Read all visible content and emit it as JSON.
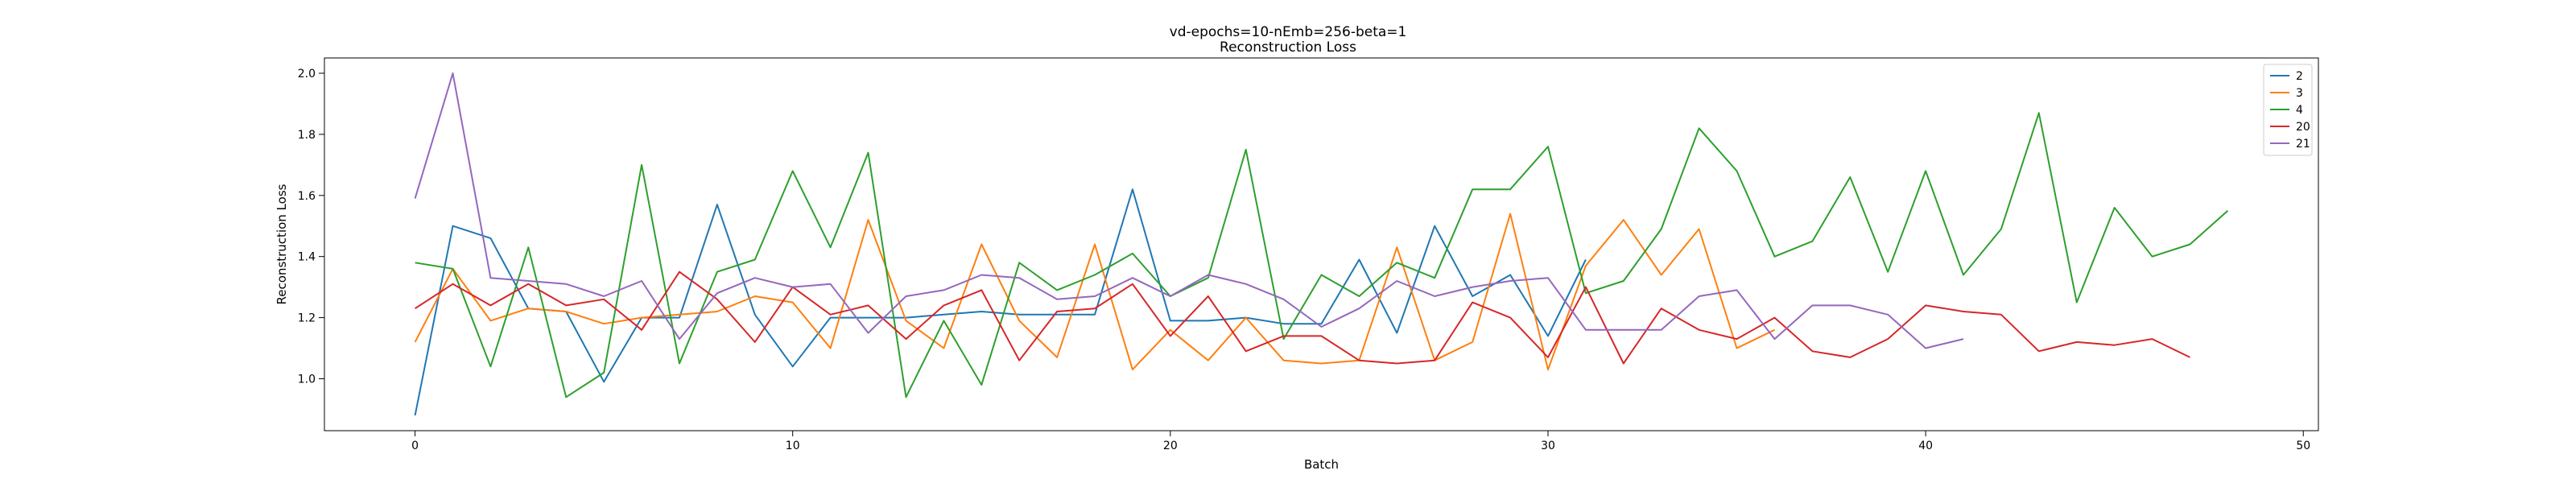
{
  "chart_data": {
    "type": "line",
    "title": "vd-epochs=10-nEmb=256-beta=1",
    "subtitle": "Reconstruction Loss",
    "xlabel": "Batch",
    "ylabel": "Reconstruction Loss",
    "xlim": [
      -2.4,
      50.4
    ],
    "ylim": [
      0.83,
      2.05
    ],
    "xticks": [
      0,
      10,
      20,
      30,
      40,
      50
    ],
    "yticks": [
      1.0,
      1.2,
      1.4,
      1.6,
      1.8,
      2.0
    ],
    "ytick_labels": [
      "1.0",
      "1.2",
      "1.4",
      "1.6",
      "1.8",
      "2.0"
    ],
    "grid": false,
    "legend_position": "top-right",
    "series": [
      {
        "name": "2",
        "color": "#1f77b4",
        "values": [
          0.88,
          1.5,
          1.46,
          1.23,
          1.22,
          0.99,
          1.2,
          1.2,
          1.57,
          1.21,
          1.04,
          1.2,
          1.2,
          1.2,
          1.21,
          1.22,
          1.21,
          1.21,
          1.21,
          1.62,
          1.19,
          1.19,
          1.2,
          1.18,
          1.18,
          1.39,
          1.15,
          1.5,
          1.27,
          1.34,
          1.14,
          1.39
        ]
      },
      {
        "name": "3",
        "color": "#ff7f0e",
        "values": [
          1.12,
          1.36,
          1.19,
          1.23,
          1.22,
          1.18,
          1.2,
          1.21,
          1.22,
          1.27,
          1.25,
          1.1,
          1.52,
          1.19,
          1.1,
          1.44,
          1.19,
          1.07,
          1.44,
          1.03,
          1.16,
          1.06,
          1.2,
          1.06,
          1.05,
          1.06,
          1.43,
          1.06,
          1.12,
          1.54,
          1.03,
          1.37,
          1.52,
          1.34,
          1.49,
          1.1,
          1.16
        ]
      },
      {
        "name": "4",
        "color": "#2ca02c",
        "values": [
          1.38,
          1.36,
          1.04,
          1.43,
          0.94,
          1.02,
          1.7,
          1.05,
          1.35,
          1.39,
          1.68,
          1.43,
          1.74,
          0.94,
          1.19,
          0.98,
          1.38,
          1.29,
          1.34,
          1.41,
          1.27,
          1.33,
          1.75,
          1.13,
          1.34,
          1.27,
          1.38,
          1.33,
          1.62,
          1.62,
          1.76,
          1.28,
          1.32,
          1.49,
          1.82,
          1.68,
          1.4,
          1.45,
          1.66,
          1.35,
          1.68,
          1.34,
          1.49,
          1.87,
          1.25,
          1.56,
          1.4,
          1.44,
          1.55
        ]
      },
      {
        "name": "20",
        "color": "#d62728",
        "values": [
          1.23,
          1.31,
          1.24,
          1.31,
          1.24,
          1.26,
          1.16,
          1.35,
          1.26,
          1.12,
          1.3,
          1.21,
          1.24,
          1.13,
          1.24,
          1.29,
          1.06,
          1.22,
          1.23,
          1.31,
          1.14,
          1.27,
          1.09,
          1.14,
          1.14,
          1.06,
          1.05,
          1.06,
          1.25,
          1.2,
          1.07,
          1.3,
          1.05,
          1.23,
          1.16,
          1.13,
          1.2,
          1.09,
          1.07,
          1.13,
          1.24,
          1.22,
          1.21,
          1.09,
          1.12,
          1.11,
          1.13,
          1.07
        ]
      },
      {
        "name": "21",
        "color": "#9467bd",
        "values": [
          1.59,
          2.0,
          1.33,
          1.32,
          1.31,
          1.27,
          1.32,
          1.13,
          1.28,
          1.33,
          1.3,
          1.31,
          1.15,
          1.27,
          1.29,
          1.34,
          1.33,
          1.26,
          1.27,
          1.33,
          1.27,
          1.34,
          1.31,
          1.26,
          1.17,
          1.23,
          1.32,
          1.27,
          1.3,
          1.32,
          1.33,
          1.16,
          1.16,
          1.16,
          1.27,
          1.29,
          1.13,
          1.24,
          1.24,
          1.21,
          1.1,
          1.13
        ]
      }
    ]
  }
}
